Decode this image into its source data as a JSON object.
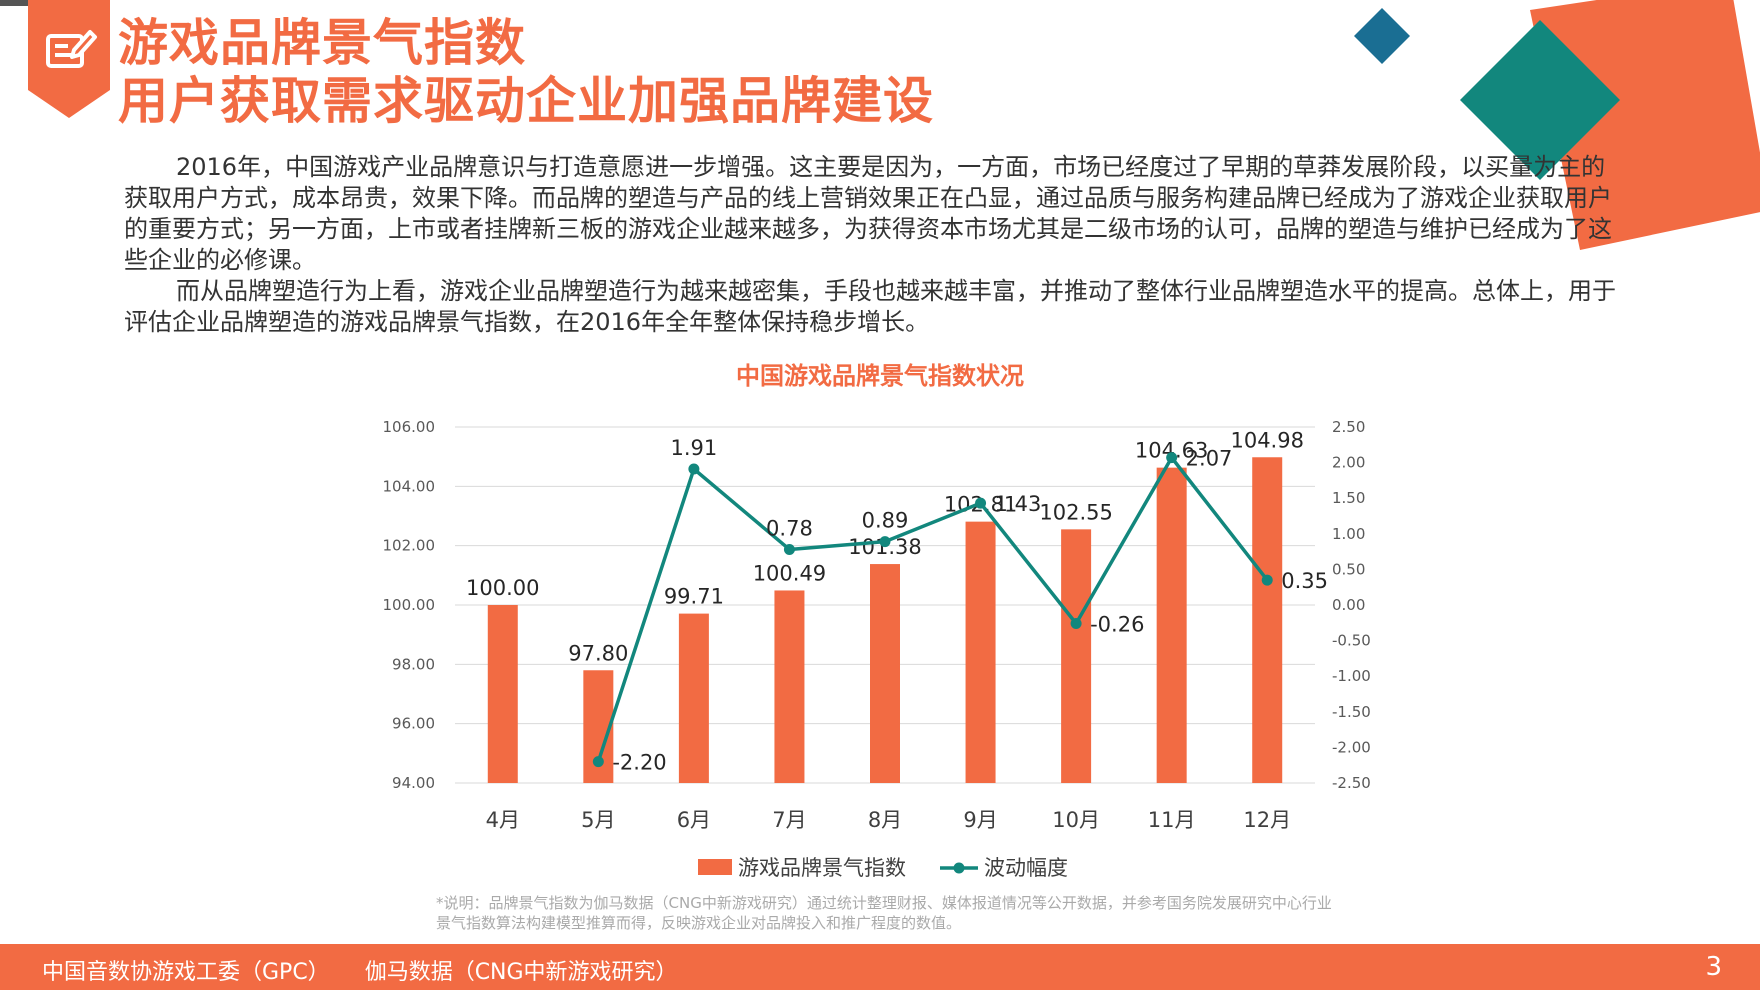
{
  "header": {
    "title_line1": "游戏品牌景气指数",
    "title_line2": "用户获取需求驱动企业加强品牌建设",
    "icon": "edit-note-icon",
    "accent_color": "#f26b43"
  },
  "body": {
    "paragraph1": "2016年，中国游戏产业品牌意识与打造意愿进一步增强。这主要是因为，一方面，市场已经度过了早期的草莽发展阶段，以买量为主的获取用户方式，成本昂贵，效果下降。而品牌的塑造与产品的线上营销效果正在凸显，通过品质与服务构建品牌已经成为了游戏企业获取用户的重要方式；另一方面，上市或者挂牌新三板的游戏企业越来越多，为获得资本市场尤其是二级市场的认可，品牌的塑造与维护已经成为了这些企业的必修课。",
    "paragraph2": "而从品牌塑造行为上看，游戏企业品牌塑造行为越来越密集，手段也越来越丰富，并推动了整体行业品牌塑造水平的提高。总体上，用于评估企业品牌塑造的游戏品牌景气指数，在2016年全年整体保持稳步增长。"
  },
  "chart_data": {
    "type": "bar",
    "title": "中国游戏品牌景气指数状况",
    "categories": [
      "4月",
      "5月",
      "6月",
      "7月",
      "8月",
      "9月",
      "10月",
      "11月",
      "12月"
    ],
    "series": [
      {
        "name": "游戏品牌景气指数",
        "type": "bar",
        "axis": "left",
        "color": "#f26b43",
        "values": [
          100.0,
          97.8,
          99.71,
          100.49,
          101.38,
          102.81,
          102.55,
          104.63,
          104.98
        ],
        "labels": [
          "100.00",
          "97.80",
          "99.71",
          "100.49",
          "101.38",
          "102.81",
          "102.55",
          "104.63",
          "104.98"
        ]
      },
      {
        "name": "波动幅度",
        "type": "line",
        "axis": "right",
        "color": "#12877d",
        "values": [
          null,
          -2.2,
          1.91,
          0.78,
          0.89,
          1.43,
          -0.26,
          2.07,
          0.35
        ],
        "labels": [
          "",
          "-2.20",
          "1.91",
          "0.78",
          "0.89",
          "1.43",
          "-0.26",
          "2.07",
          "0.35"
        ]
      }
    ],
    "y_left": {
      "min": 94,
      "max": 106,
      "ticks": [
        "94.00",
        "96.00",
        "98.00",
        "100.00",
        "102.00",
        "104.00",
        "106.00"
      ]
    },
    "y_right": {
      "min": -2.5,
      "max": 2.5,
      "ticks": [
        "-2.50",
        "-2.00",
        "-1.50",
        "-1.00",
        "-0.50",
        "0.00",
        "0.50",
        "1.00",
        "1.50",
        "2.00",
        "2.50"
      ]
    },
    "grid": true,
    "legend_position": "bottom"
  },
  "note": "*说明：品牌景气指数为伽马数据（CNG中新游戏研究）通过统计整理财报、媒体报道情况等公开数据，并参考国务院发展研究中心行业景气指数算法构建模型推算而得，反映游戏企业对品牌投入和推广程度的数值。",
  "footer": {
    "source1": "中国音数协游戏工委（GPC）",
    "source2": "伽马数据（CNG中新游戏研究）",
    "page_number": "3"
  }
}
